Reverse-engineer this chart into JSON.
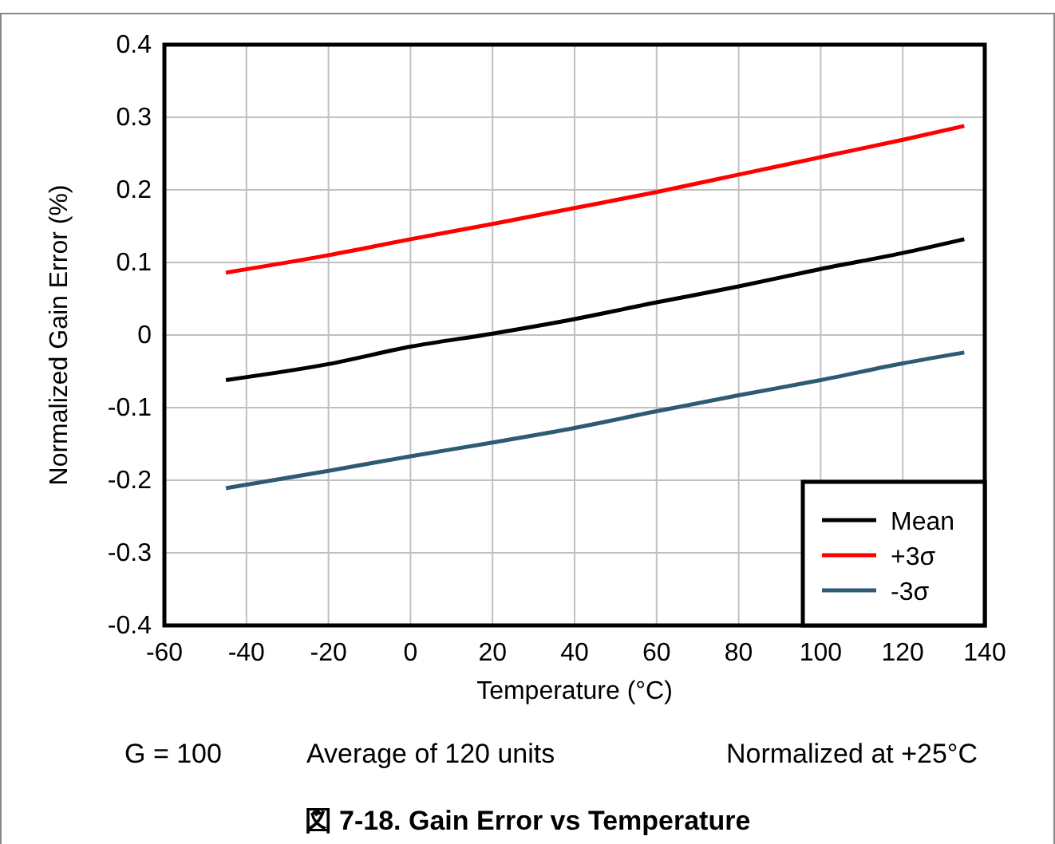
{
  "chart_data": {
    "type": "line",
    "title": "図 7-18. Gain Error vs Temperature",
    "xlabel": "Temperature (°C)",
    "ylabel": "Normalized Gain Error (%)",
    "annotations": [
      "G = 100",
      "Average of 120 units",
      "Normalized at +25°C"
    ],
    "x": [
      -45,
      -20,
      0,
      20,
      40,
      60,
      80,
      100,
      120,
      135
    ],
    "series": [
      {
        "name": "Mean",
        "color": "#000000",
        "values": [
          -0.062,
          -0.04,
          -0.016,
          0.002,
          0.022,
          0.045,
          0.067,
          0.091,
          0.113,
          0.132
        ]
      },
      {
        "name": "+3σ",
        "color": "#ff0000",
        "values": [
          0.086,
          0.11,
          0.132,
          0.153,
          0.175,
          0.197,
          0.221,
          0.245,
          0.269,
          0.288
        ]
      },
      {
        "name": "-3σ",
        "color": "#2e5a74",
        "values": [
          -0.211,
          -0.187,
          -0.167,
          -0.148,
          -0.128,
          -0.105,
          -0.083,
          -0.062,
          -0.039,
          -0.024
        ]
      }
    ],
    "xlim": [
      -60,
      140
    ],
    "xticks": [
      -60,
      -40,
      -20,
      0,
      20,
      40,
      60,
      80,
      100,
      120,
      140
    ],
    "ylim": [
      -0.4,
      0.4
    ],
    "yticks": [
      -0.4,
      -0.3,
      -0.2,
      -0.1,
      0,
      0.1,
      0.2,
      0.3,
      0.4
    ],
    "grid": true,
    "legend": "bottom right",
    "line_style": "solid",
    "marker": "none"
  }
}
